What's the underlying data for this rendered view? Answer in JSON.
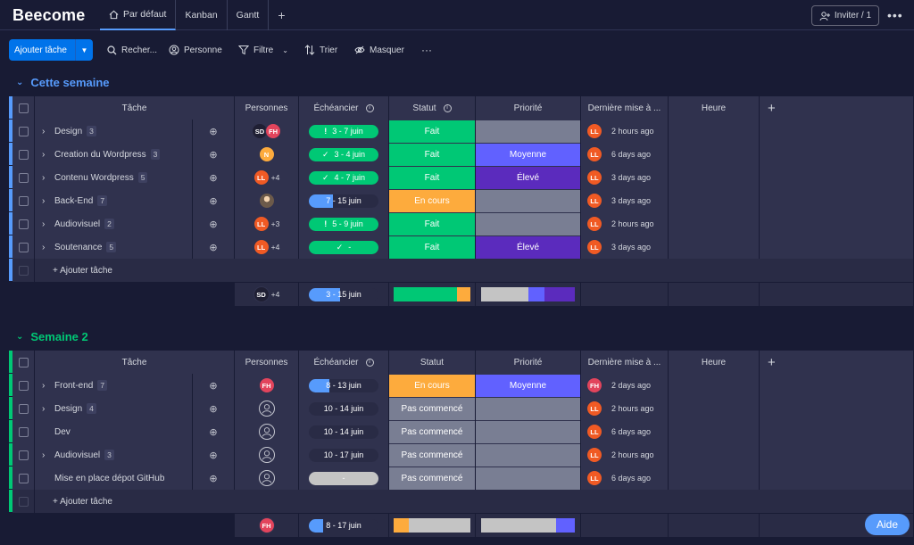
{
  "app": {
    "title": "Beecome"
  },
  "views": [
    {
      "label": "Par défaut",
      "icon": "home-icon"
    },
    {
      "label": "Kanban"
    },
    {
      "label": "Gantt"
    }
  ],
  "view_add": "+",
  "invite_label": "Inviter / 1",
  "more_label": "•••",
  "toolbar": {
    "add_task": "Ajouter tâche",
    "search": "Recher...",
    "person": "Personne",
    "filter": "Filtre",
    "sort": "Trier",
    "hide": "Masquer",
    "more": "···"
  },
  "columns": {
    "task": "Tâche",
    "people": "Personnes",
    "timeline": "Échéancier",
    "status": "Statut",
    "priority": "Priorité",
    "updated": "Dernière mise à ...",
    "hour": "Heure",
    "add": "+"
  },
  "colors": {
    "done": "#00c875",
    "working": "#fdab3d",
    "not_started": "#797e93",
    "prio_medium": "#6161ff",
    "prio_high": "#5b2bbd",
    "prio_empty": "#797e93",
    "group1": "#579bfc",
    "group2": "#00c875"
  },
  "groups": [
    {
      "title": "Cette semaine",
      "color": "#579bfc",
      "add_task": "+ Ajouter tâche",
      "rows": [
        {
          "name": "Design",
          "count": "3",
          "people": [
            "SD",
            "FH"
          ],
          "plus": "",
          "timeline": "3 - 7 juin",
          "tl_icon": "!",
          "tl_fill": 1.0,
          "status": "Fait",
          "priority": "",
          "updater": "LL",
          "updated": "2 hours ago"
        },
        {
          "name": "Creation du Wordpress",
          "count": "3",
          "people": [
            "N"
          ],
          "plus": "",
          "timeline": "3 - 4 juin",
          "tl_icon": "✓",
          "tl_fill": 1.0,
          "status": "Fait",
          "priority": "Moyenne",
          "updater": "LL",
          "updated": "6 days ago"
        },
        {
          "name": "Contenu Wordpress",
          "count": "5",
          "people": [
            "LL"
          ],
          "plus": "+4",
          "timeline": "4 - 7 juin",
          "tl_icon": "✓",
          "tl_fill": 1.0,
          "status": "Fait",
          "priority": "Élevé",
          "updater": "LL",
          "updated": "3 days ago"
        },
        {
          "name": "Back-End",
          "count": "7",
          "people": [
            "photo"
          ],
          "plus": "",
          "timeline": "7 - 15 juin",
          "tl_icon": "",
          "tl_fill": 0.35,
          "status": "En cours",
          "priority": "",
          "updater": "LL",
          "updated": "3 days ago"
        },
        {
          "name": "Audiovisuel",
          "count": "2",
          "people": [
            "LL"
          ],
          "plus": "+3",
          "timeline": "5 - 9 juin",
          "tl_icon": "!",
          "tl_fill": 1.0,
          "status": "Fait",
          "priority": "",
          "updater": "LL",
          "updated": "2 hours ago"
        },
        {
          "name": "Soutenance",
          "count": "5",
          "people": [
            "LL"
          ],
          "plus": "+4",
          "timeline": "-",
          "tl_icon": "✓",
          "tl_fill": 1.0,
          "status": "Fait",
          "priority": "Élevé",
          "updater": "LL",
          "updated": "3 days ago"
        }
      ],
      "summary": {
        "people": [
          "SD"
        ],
        "plus": "+4",
        "timeline": "3 - 15 juin",
        "tl_fill": 0.45,
        "status_mix": [
          {
            "key": "done",
            "share": 0.83
          },
          {
            "key": "working",
            "share": 0.17
          }
        ],
        "prio_mix": [
          {
            "key": "empty",
            "share": 0.5
          },
          {
            "key": "medium",
            "share": 0.17
          },
          {
            "key": "high",
            "share": 0.33
          }
        ]
      }
    },
    {
      "title": "Semaine 2",
      "color": "#00c875",
      "add_task": "+ Ajouter tâche",
      "rows": [
        {
          "name": "Front-end",
          "count": "7",
          "expandable": true,
          "people": [
            "FH"
          ],
          "plus": "",
          "timeline": "8 - 13 juin",
          "tl_icon": "",
          "tl_fill": 0.3,
          "status": "En cours",
          "priority": "Moyenne",
          "updater": "FH",
          "updated": "2 days ago"
        },
        {
          "name": "Design",
          "count": "4",
          "expandable": true,
          "people": [
            "empty"
          ],
          "plus": "",
          "timeline": "10 - 14 juin",
          "tl_icon": "",
          "tl_fill": 0,
          "status": "Pas commencé",
          "priority": "",
          "updater": "LL",
          "updated": "2 hours ago"
        },
        {
          "name": "Dev",
          "count": "",
          "expandable": false,
          "people": [
            "empty"
          ],
          "plus": "",
          "timeline": "10 - 14 juin",
          "tl_icon": "",
          "tl_fill": 0,
          "status": "Pas commencé",
          "priority": "",
          "updater": "LL",
          "updated": "6 days ago"
        },
        {
          "name": "Audiovisuel",
          "count": "3",
          "expandable": true,
          "people": [
            "empty"
          ],
          "plus": "",
          "timeline": "10 - 17 juin",
          "tl_icon": "",
          "tl_fill": 0,
          "status": "Pas commencé",
          "priority": "",
          "updater": "LL",
          "updated": "2 hours ago"
        },
        {
          "name": "Mise en place dépot GitHub",
          "count": "",
          "expandable": false,
          "people": [
            "empty"
          ],
          "plus": "",
          "timeline": "-",
          "tl_icon": "",
          "tl_fill": -1,
          "status": "Pas commencé",
          "priority": "",
          "updater": "LL",
          "updated": "6 days ago"
        }
      ],
      "summary": {
        "people": [
          "FH"
        ],
        "plus": "",
        "timeline": "8 - 17 juin",
        "tl_fill": 0.2,
        "status_mix": [
          {
            "key": "working",
            "share": 0.2
          },
          {
            "key": "not_started",
            "share": 0.8
          }
        ],
        "prio_mix": [
          {
            "key": "empty",
            "share": 0.8
          },
          {
            "key": "medium",
            "share": 0.2
          }
        ]
      }
    }
  ],
  "help_label": "Aide"
}
